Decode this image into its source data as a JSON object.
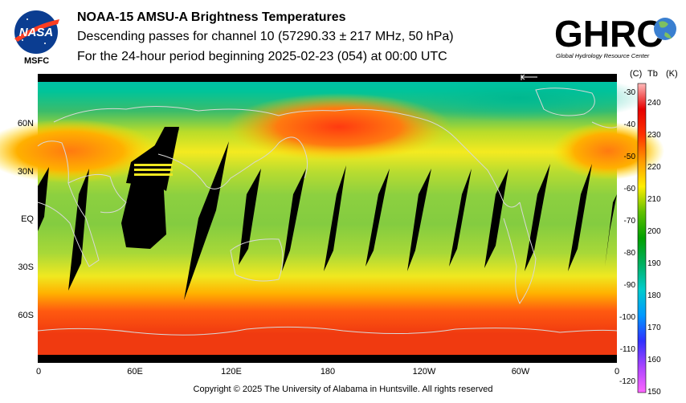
{
  "header": {
    "org_label": "MSFC",
    "nasa_logo_text": "NASA",
    "title": "NOAA-15 AMSU-A Brightness Temperatures",
    "subtitle": "Descending passes for channel 10 (57290.33 ± 217 MHz, 50 hPa)",
    "period": "For the 24-hour period beginning 2025-02-23 (054) at 00:00 UTC",
    "ghrc_logo_text": "GHRC",
    "ghrc_tagline": "Global Hydrology Resource Center"
  },
  "map": {
    "lat_labels": [
      "60N",
      "30N",
      "EQ",
      "30S",
      "60S"
    ],
    "lon_labels": [
      "0",
      "60E",
      "120E",
      "180",
      "120W",
      "60W",
      "0"
    ]
  },
  "colorbar": {
    "celsius_header": "(C)",
    "tb_header": "Tb",
    "kelvin_header": "(K)",
    "celsius_ticks": [
      "-30",
      "-40",
      "-50",
      "-60",
      "-70",
      "-80",
      "-90",
      "-100",
      "-110",
      "-120"
    ],
    "kelvin_ticks": [
      "240",
      "230",
      "220",
      "210",
      "200",
      "190",
      "180",
      "170",
      "160",
      "150"
    ],
    "colors": [
      "#ff66ff",
      "#aa44ff",
      "#3030ff",
      "#0099ff",
      "#00cccc",
      "#00b060",
      "#00a000",
      "#60c000",
      "#ffee00",
      "#ff9900",
      "#ff3300",
      "#e60000",
      "#ffbbbb"
    ]
  },
  "footer": {
    "copyright": "Copyright © 2025 The University of Alabama in Huntsville.  All rights reserved"
  }
}
